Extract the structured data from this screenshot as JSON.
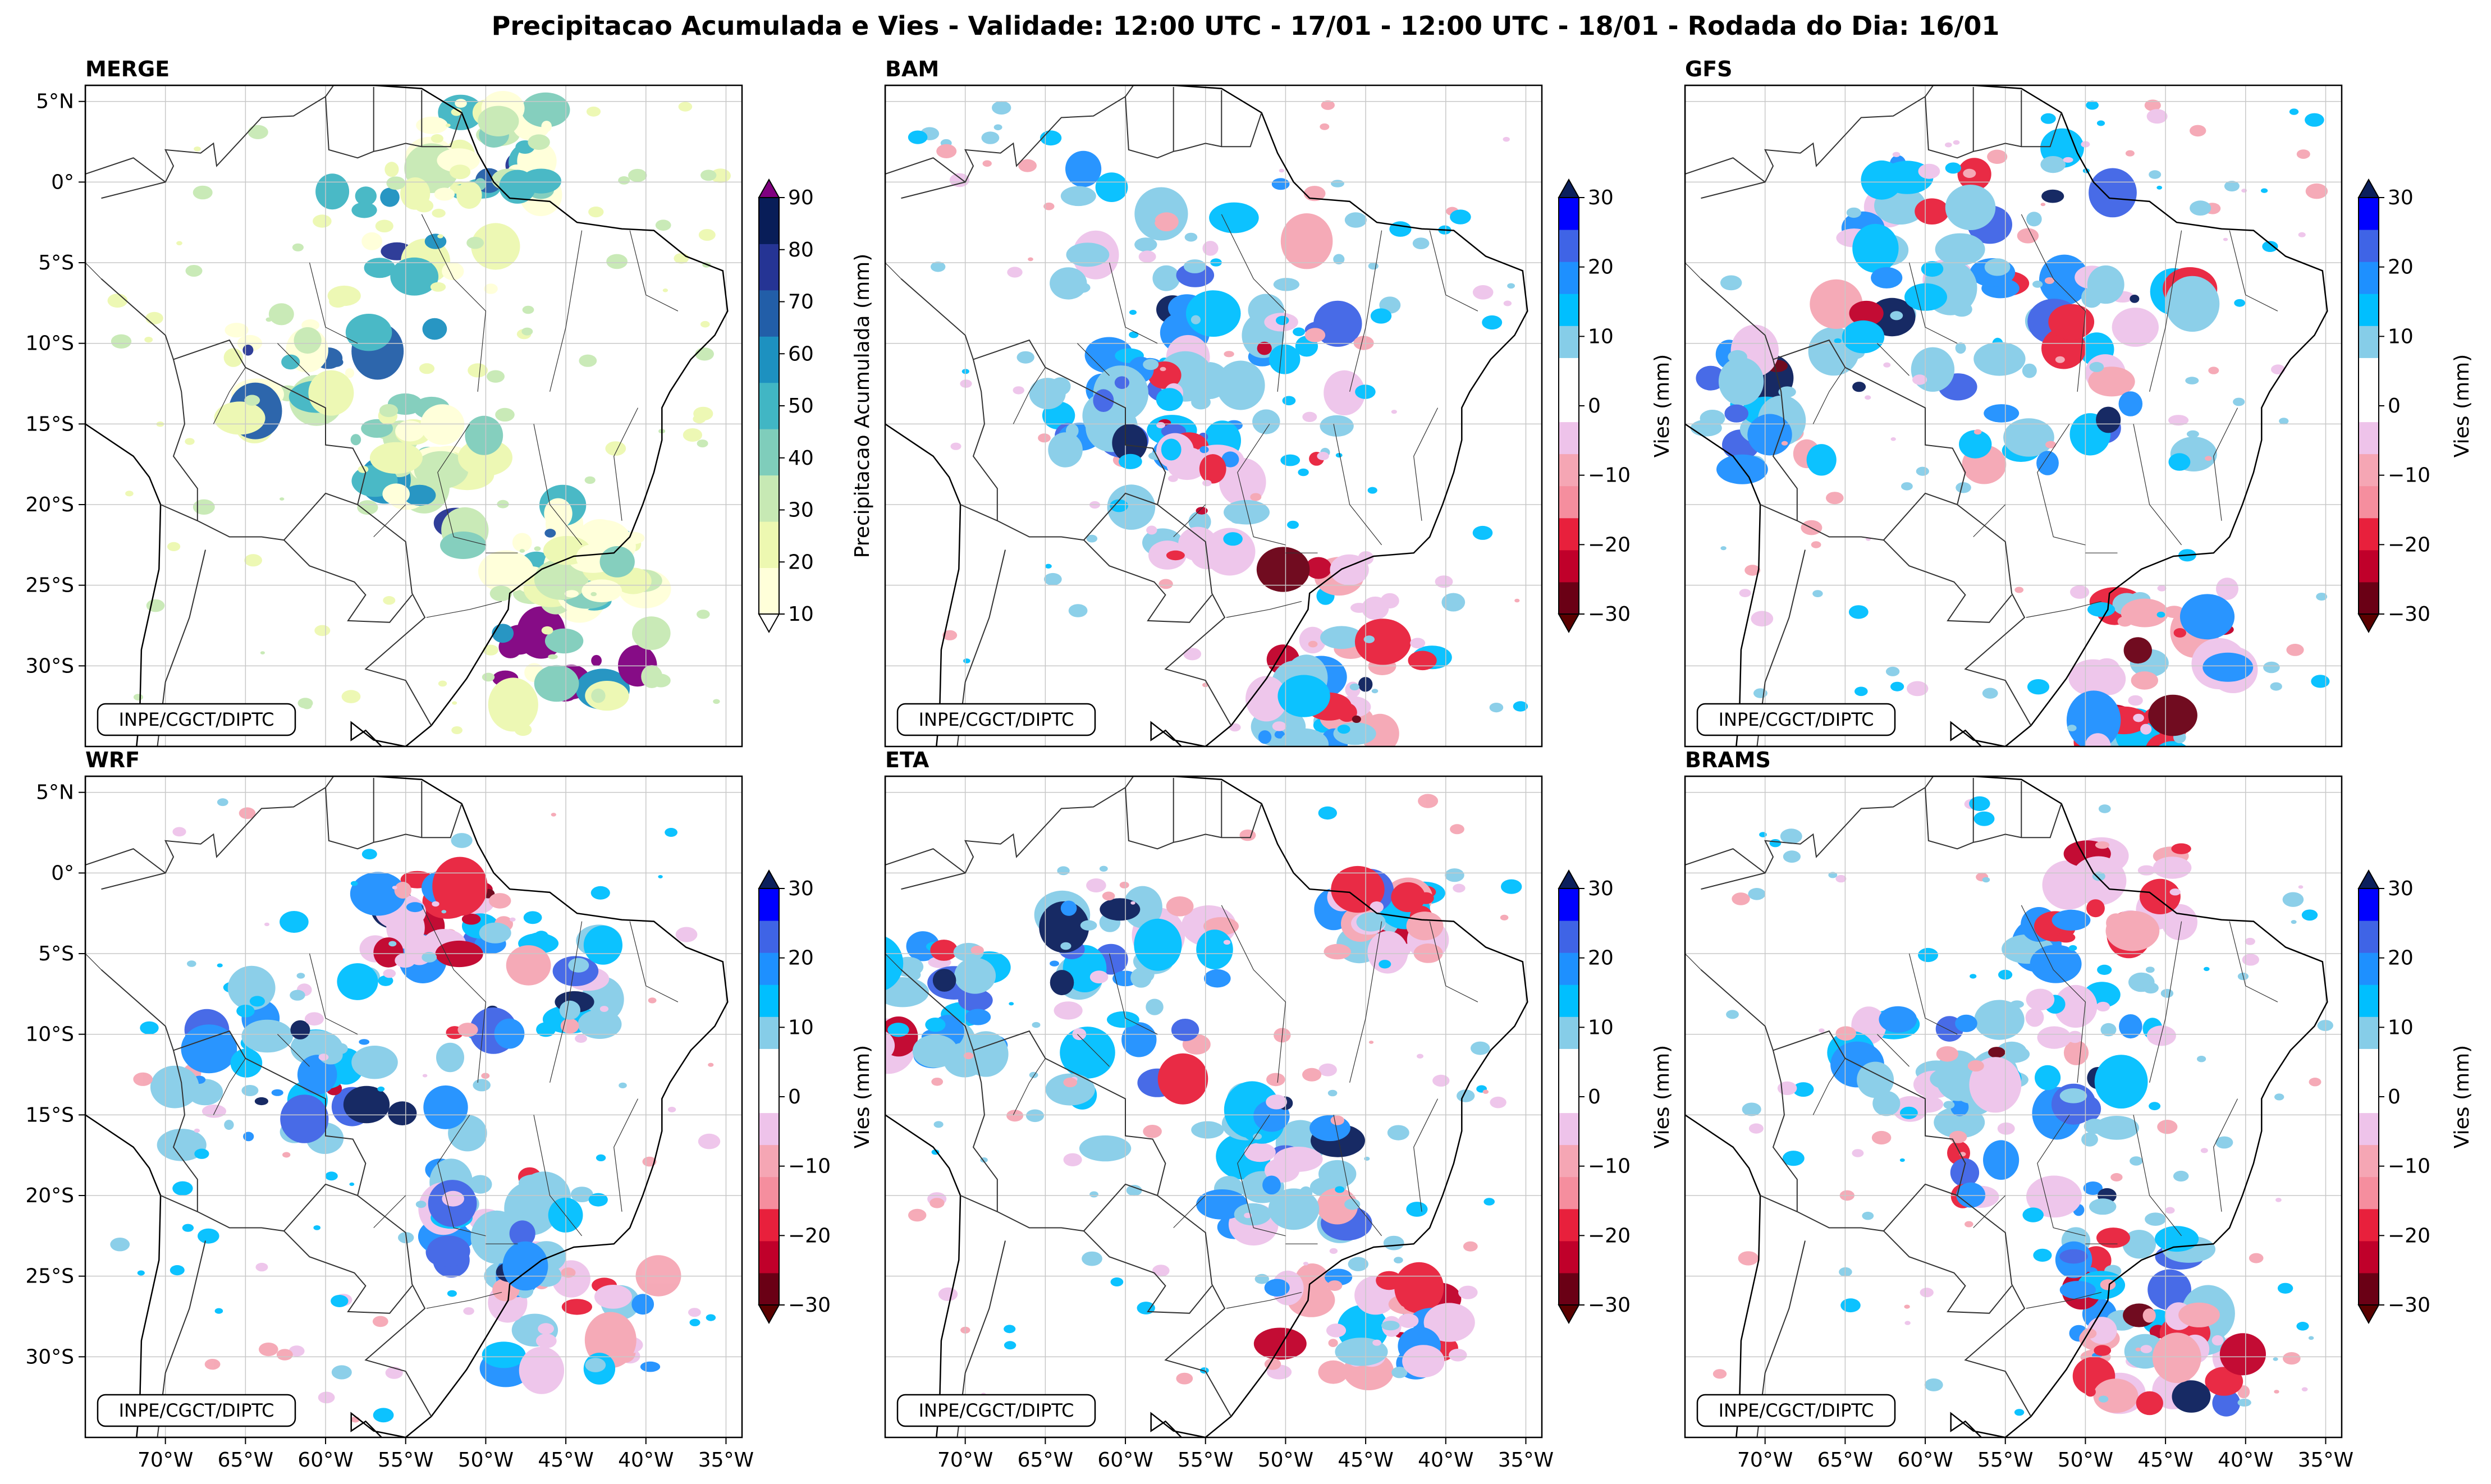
{
  "title": "Precipitacao Acumulada e Vies - Validade: 12:00 UTC - 17/01 - 12:00 UTC - 18/01 - Rodada do Dia: 16/01",
  "credit": "INPE/CGCT/DIPTC",
  "lat_ticks": [
    "5°N",
    "0°",
    "5°S",
    "10°S",
    "15°S",
    "20°S",
    "25°S",
    "30°S"
  ],
  "lon_ticks": [
    "70°W",
    "65°W",
    "60°W",
    "55°W",
    "50°W",
    "45°W",
    "40°W",
    "35°W"
  ],
  "panels": [
    {
      "name": "MERGE",
      "kind": "precip",
      "seed": 11
    },
    {
      "name": "BAM",
      "kind": "bias",
      "seed": 23
    },
    {
      "name": "GFS",
      "kind": "bias",
      "seed": 37
    },
    {
      "name": "WRF",
      "kind": "bias",
      "seed": 41
    },
    {
      "name": "ETA",
      "kind": "bias",
      "seed": 53
    },
    {
      "name": "BRAMS",
      "kind": "bias",
      "seed": 67
    }
  ],
  "colorbars": {
    "precip": {
      "label": "Precipitacao Acumulada (mm)",
      "ticks": [
        "10",
        "20",
        "30",
        "40",
        "50",
        "60",
        "70",
        "80",
        "90"
      ],
      "colors": [
        "#ffffd9",
        "#edf8b1",
        "#c7e9b4",
        "#7fcdbb",
        "#41b6c4",
        "#1d91c0",
        "#225ea8",
        "#253494",
        "#081d58"
      ],
      "over": "#800080",
      "under": "#ffffff"
    },
    "bias": {
      "label": "Vies (mm)",
      "ticks": [
        "30",
        "20",
        "10",
        "0",
        "−10",
        "−20",
        "−30"
      ],
      "colors": [
        "#6a0015",
        "#c0002a",
        "#e8203c",
        "#f58e9e",
        "#f5a6b4",
        "#eec3ea",
        "#ffffff",
        "#ffffff",
        "#86cde8",
        "#00bfff",
        "#1e90ff",
        "#3f64e6",
        "#0000ff"
      ],
      "over": "#0b1f5c",
      "under": "#5a0000"
    }
  }
}
